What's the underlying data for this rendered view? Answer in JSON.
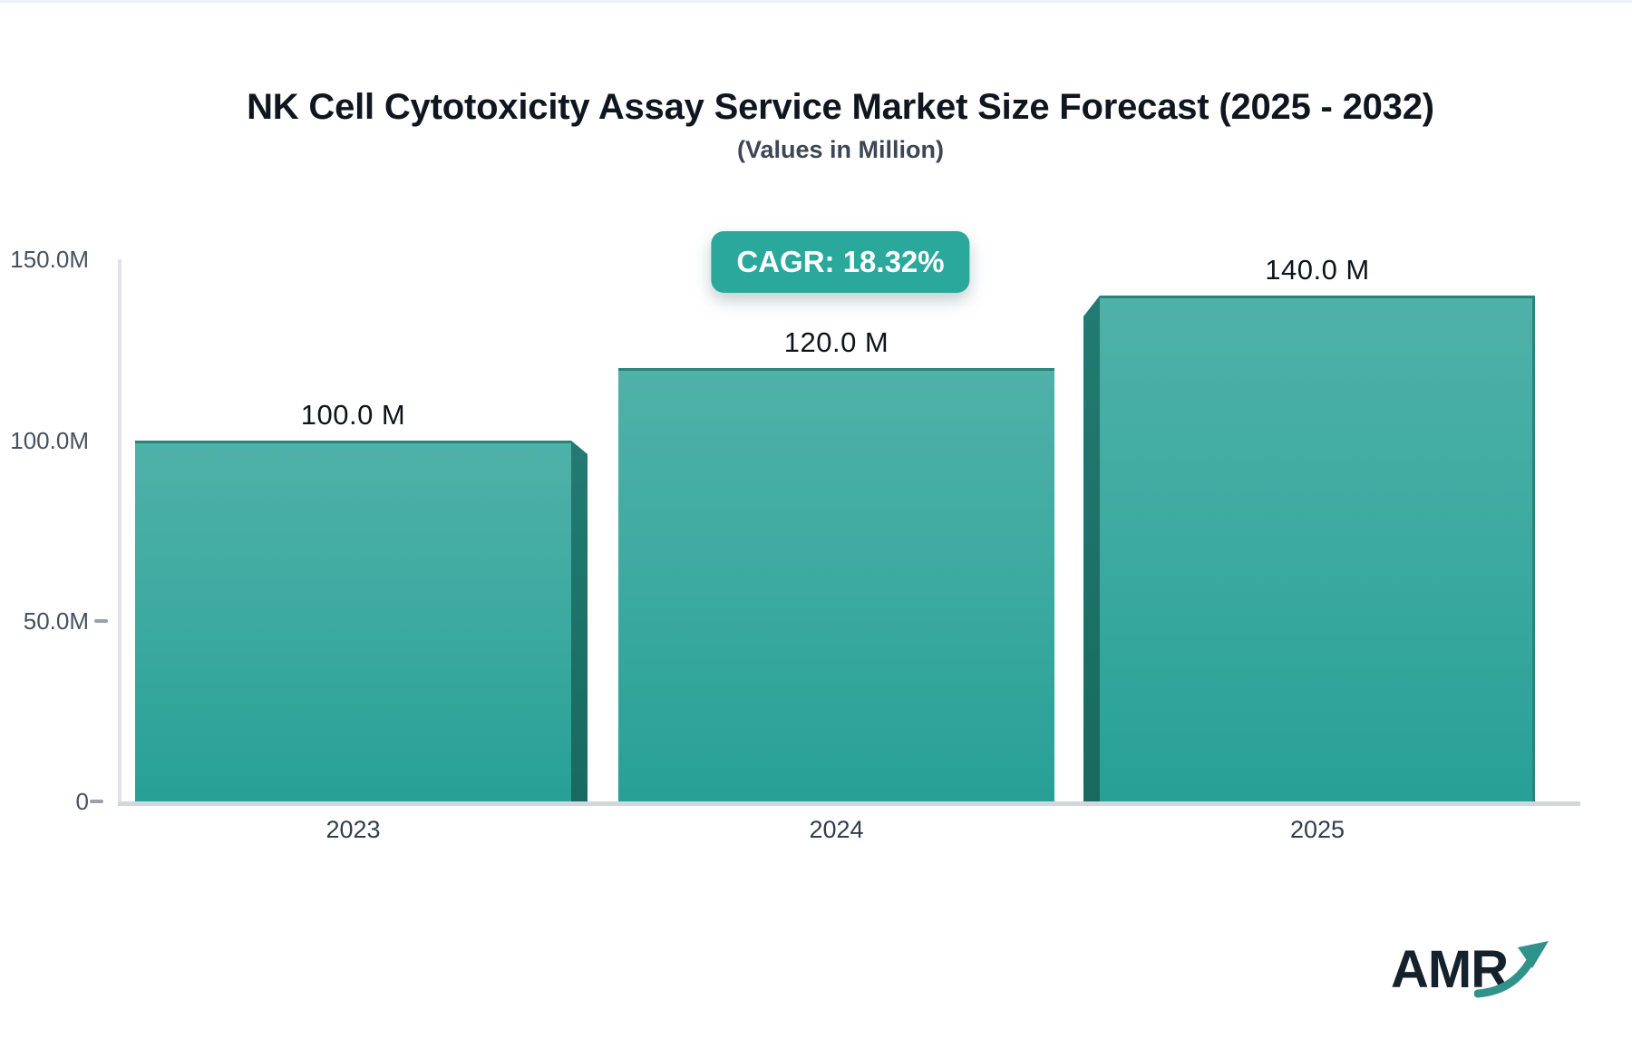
{
  "chart_data": {
    "type": "bar",
    "title": "NK Cell Cytotoxicity Assay Service Market Size Forecast (2025 - 2032)",
    "subtitle": "(Values in Million)",
    "cagr_badge": "CAGR: 18.32%",
    "categories": [
      "2023",
      "2024",
      "2025"
    ],
    "values": [
      100.0,
      120.0,
      140.0
    ],
    "value_labels": [
      "100.0 M",
      "120.0 M",
      "140.0 M"
    ],
    "y_axis": {
      "tick_labels": [
        "150.0M",
        "100.0M",
        "50.0M",
        "0"
      ],
      "tick_values": [
        150,
        100,
        50,
        0
      ],
      "ylim": [
        0,
        150
      ]
    },
    "grid": false,
    "legend": false,
    "bar_style": "3d-gradient-teal",
    "colors": {
      "accent": "#2aa89c",
      "badge_text": "#ffffff",
      "bar_gradient_top": "#4fb1a8",
      "bar_gradient_bottom": "#27a096",
      "bar_top_edge": "#28857b",
      "bar_side": "#227b72",
      "bar_side_dark": "#176a60",
      "title_text": "#10161f",
      "axis_text": "#47525f",
      "tick_text": "#333d4d",
      "value_text": "#0e141b",
      "baseline": "#d3d7dd",
      "axis_line": "#e1e3e8",
      "logo_text": "#15212b",
      "logo_arrow": "#2f938c"
    }
  },
  "logo": {
    "text": "AMR"
  }
}
